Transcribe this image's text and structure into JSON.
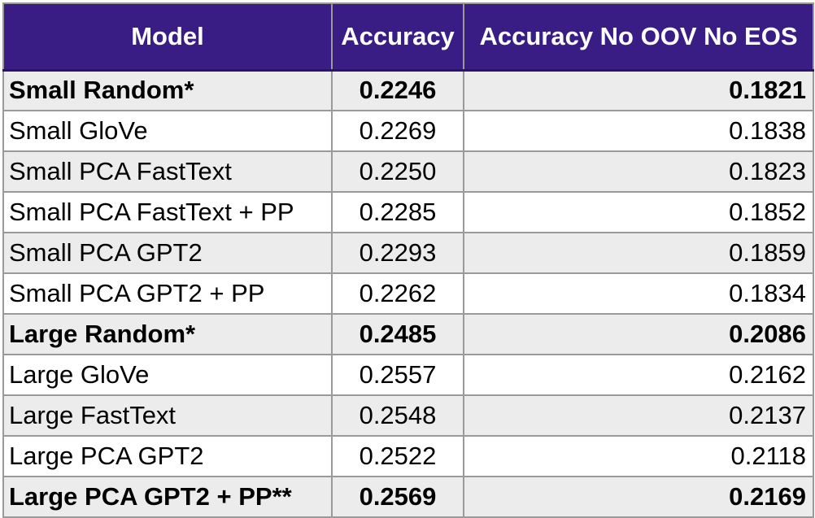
{
  "table": {
    "headers": [
      "Model",
      "Accuracy",
      "Accuracy No OOV No EOS"
    ],
    "rows": [
      {
        "model": "Small Random*",
        "accuracy": "0.2246",
        "accuracy_no_oov_no_eos": "0.1821",
        "bold": true
      },
      {
        "model": "Small GloVe",
        "accuracy": "0.2269",
        "accuracy_no_oov_no_eos": "0.1838",
        "bold": false
      },
      {
        "model": "Small PCA FastText",
        "accuracy": "0.2250",
        "accuracy_no_oov_no_eos": "0.1823",
        "bold": false
      },
      {
        "model": "Small PCA FastText + PP",
        "accuracy": "0.2285",
        "accuracy_no_oov_no_eos": "0.1852",
        "bold": false
      },
      {
        "model": "Small PCA GPT2",
        "accuracy": "0.2293",
        "accuracy_no_oov_no_eos": "0.1859",
        "bold": false
      },
      {
        "model": "Small PCA GPT2 + PP",
        "accuracy": "0.2262",
        "accuracy_no_oov_no_eos": "0.1834",
        "bold": false
      },
      {
        "model": "Large Random*",
        "accuracy": "0.2485",
        "accuracy_no_oov_no_eos": "0.2086",
        "bold": true
      },
      {
        "model": "Large GloVe",
        "accuracy": "0.2557",
        "accuracy_no_oov_no_eos": "0.2162",
        "bold": false
      },
      {
        "model": "Large FastText",
        "accuracy": "0.2548",
        "accuracy_no_oov_no_eos": "0.2137",
        "bold": false
      },
      {
        "model": "Large PCA GPT2",
        "accuracy": "0.2522",
        "accuracy_no_oov_no_eos": "0.2118",
        "bold": false
      },
      {
        "model": "Large PCA GPT2 + PP**",
        "accuracy": "0.2569",
        "accuracy_no_oov_no_eos": "0.2169",
        "bold": true
      }
    ]
  },
  "colors": {
    "header_background": "#3a1c85",
    "header_text": "#ffffff",
    "stripe": "#ececec",
    "border": "#9a9a9a"
  }
}
